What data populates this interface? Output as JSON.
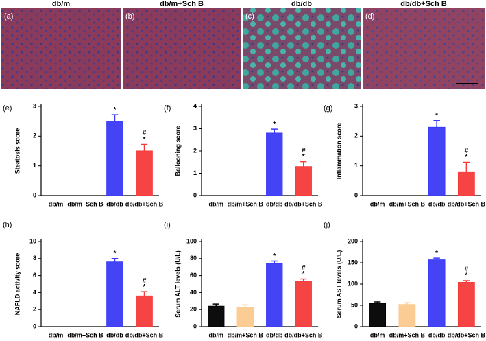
{
  "figure_panels": {
    "headers": [
      "db/m",
      "db/m+Sch B",
      "db/db",
      "db/db+Sch B"
    ],
    "labels": [
      "(a)",
      "(b)",
      "(c)",
      "(d)"
    ]
  },
  "chart_data": [
    {
      "type": "bar",
      "panel_label": "(e)",
      "ylabel": "Steatosis score",
      "categories": [
        "db/m",
        "db/m+Sch B",
        "db/db",
        "db/db+Sch B"
      ],
      "values": [
        0,
        0,
        2.5,
        1.5
      ],
      "errors": [
        0,
        0,
        0.22,
        0.22
      ],
      "colors": [
        "#000000",
        "#fcc98f",
        "#3a3af5",
        "#f53a3a"
      ],
      "ylim": [
        0,
        3
      ],
      "yticks": [
        0,
        1,
        2,
        3
      ],
      "significance": [
        [],
        [],
        [
          "*"
        ],
        [
          "#",
          "*"
        ]
      ]
    },
    {
      "type": "bar",
      "panel_label": "(f)",
      "ylabel": "Ballooning score",
      "categories": [
        "db/m",
        "db/m+Sch B",
        "db/db",
        "db/db+Sch B"
      ],
      "values": [
        0,
        0,
        2.8,
        1.3
      ],
      "errors": [
        0,
        0,
        0.18,
        0.22
      ],
      "colors": [
        "#000000",
        "#fcc98f",
        "#3a3af5",
        "#f53a3a"
      ],
      "ylim": [
        0,
        4
      ],
      "yticks": [
        0,
        1,
        2,
        3,
        4
      ],
      "significance": [
        [],
        [],
        [
          "*"
        ],
        [
          "#",
          "*"
        ]
      ]
    },
    {
      "type": "bar",
      "panel_label": "(g)",
      "ylabel": "Inflammation score",
      "categories": [
        "db/m",
        "db/m+Sch B",
        "db/db",
        "db/db+Sch B"
      ],
      "values": [
        0,
        0,
        2.3,
        0.8
      ],
      "errors": [
        0,
        0,
        0.22,
        0.32
      ],
      "colors": [
        "#000000",
        "#fcc98f",
        "#3a3af5",
        "#f53a3a"
      ],
      "ylim": [
        0,
        3
      ],
      "yticks": [
        0,
        1,
        2,
        3
      ],
      "significance": [
        [],
        [],
        [
          "*"
        ],
        [
          "#",
          "*"
        ]
      ]
    },
    {
      "type": "bar",
      "panel_label": "(h)",
      "ylabel": "NAFLD activity score",
      "categories": [
        "db/m",
        "db/m+Sch B",
        "db/db",
        "db/db+Sch B"
      ],
      "values": [
        0,
        0,
        7.6,
        3.6
      ],
      "errors": [
        0,
        0,
        0.4,
        0.5
      ],
      "colors": [
        "#000000",
        "#fcc98f",
        "#3a3af5",
        "#f53a3a"
      ],
      "ylim": [
        0,
        10
      ],
      "yticks": [
        0,
        2,
        4,
        6,
        8,
        10
      ],
      "significance": [
        [],
        [],
        [
          "*"
        ],
        [
          "#",
          "*"
        ]
      ]
    },
    {
      "type": "bar",
      "panel_label": "(i)",
      "ylabel": "Serum ALT levels (U/L)",
      "categories": [
        "db/m",
        "db/m+Sch B",
        "db/db",
        "db/db+Sch B"
      ],
      "values": [
        24,
        23,
        74,
        53
      ],
      "errors": [
        2.5,
        2.5,
        3,
        3
      ],
      "colors": [
        "#000000",
        "#fcc98f",
        "#3a3af5",
        "#f53a3a"
      ],
      "ylim": [
        0,
        100
      ],
      "yticks": [
        0,
        20,
        40,
        60,
        80,
        100
      ],
      "significance": [
        [],
        [],
        [
          "*"
        ],
        [
          "#",
          "*"
        ]
      ]
    },
    {
      "type": "bar",
      "panel_label": "(j)",
      "ylabel": "Serum AST levels (U/L)",
      "categories": [
        "db/m",
        "db/m+Sch B",
        "db/db",
        "db/db+Sch B"
      ],
      "values": [
        54,
        52,
        157,
        104
      ],
      "errors": [
        4,
        4,
        4,
        4
      ],
      "colors": [
        "#000000",
        "#fcc98f",
        "#3a3af5",
        "#f53a3a"
      ],
      "ylim": [
        0,
        200
      ],
      "yticks": [
        0,
        50,
        100,
        150,
        200
      ],
      "significance": [
        [],
        [],
        [
          "*"
        ],
        [
          "#",
          "*"
        ]
      ]
    }
  ]
}
